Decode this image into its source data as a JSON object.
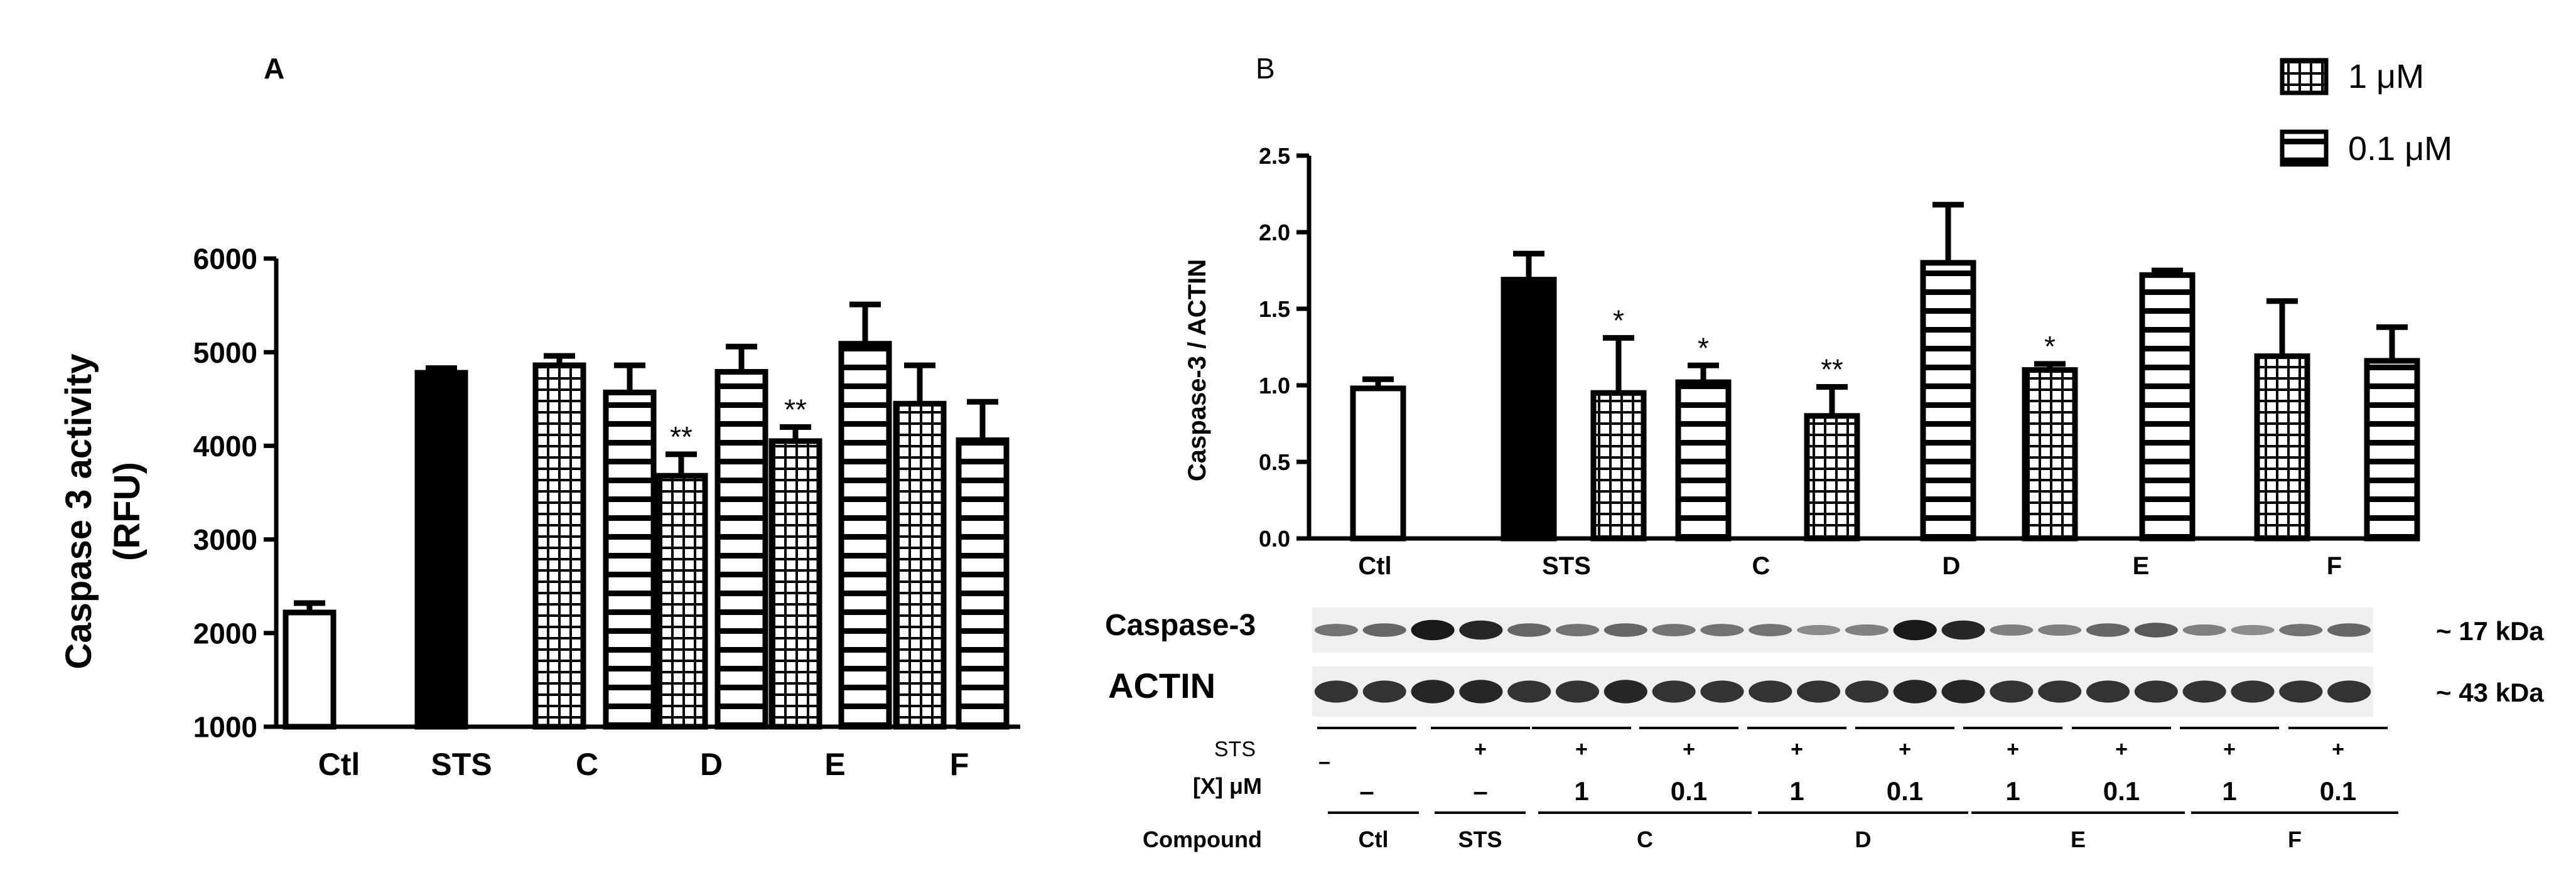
{
  "panel_a_letter": "A",
  "panel_b_letter": "B",
  "legend": {
    "items": [
      {
        "label": "1 μM",
        "pattern": "grid"
      },
      {
        "label": "0.1 μM",
        "pattern": "hstripe"
      }
    ]
  },
  "blot": {
    "caspase_label": "Caspase-3",
    "actin_label": "ACTIN",
    "caspase_kda": "~ 17 kDa",
    "actin_kda": "~ 43 kDa",
    "row_sts_label": "STS",
    "row_conc_label": "[X] μM",
    "row_compound_label": "Compound",
    "sts_row": [
      "–",
      "+",
      "+",
      "+",
      "+",
      "+",
      "+",
      "+",
      "+",
      "+"
    ],
    "conc_row": [
      "–",
      "–",
      "1",
      "0.1",
      "1",
      "0.1",
      "1",
      "0.1",
      "1",
      "0.1"
    ],
    "compounds": [
      "Ctl",
      "STS",
      "C",
      "D",
      "E",
      "F"
    ],
    "caspase_intensity": [
      0.55,
      0.6,
      0.9,
      0.85,
      0.6,
      0.55,
      0.6,
      0.55,
      0.55,
      0.55,
      0.45,
      0.5,
      0.9,
      0.85,
      0.5,
      0.5,
      0.6,
      0.65,
      0.5,
      0.45,
      0.55,
      0.6
    ],
    "actin_intensity": [
      0.8,
      0.8,
      0.85,
      0.85,
      0.8,
      0.8,
      0.85,
      0.8,
      0.8,
      0.8,
      0.8,
      0.8,
      0.85,
      0.85,
      0.8,
      0.8,
      0.8,
      0.8,
      0.8,
      0.8,
      0.8,
      0.8
    ]
  },
  "chart_data": [
    {
      "type": "bar",
      "panel": "A",
      "title": "",
      "xlabel": "",
      "ylabel_line1": "Caspase 3 activity",
      "ylabel_line2": "(RFU)",
      "ylim": [
        1000,
        6000
      ],
      "yticks": [
        1000,
        2000,
        3000,
        4000,
        5000,
        6000
      ],
      "categories": [
        "Ctl",
        "STS",
        "C",
        "D",
        "E",
        "F"
      ],
      "bars": [
        {
          "category": "Ctl",
          "pattern": "white",
          "value": 2220,
          "error": 100,
          "sig": ""
        },
        {
          "category": "STS",
          "pattern": "black",
          "value": 4780,
          "error": 50,
          "sig": ""
        },
        {
          "category": "C",
          "pattern": "grid",
          "value": 4860,
          "error": 100,
          "sig": ""
        },
        {
          "category": "C",
          "pattern": "hstripe",
          "value": 4570,
          "error": 290,
          "sig": ""
        },
        {
          "category": "D",
          "pattern": "grid",
          "value": 3680,
          "error": 230,
          "sig": "**"
        },
        {
          "category": "D",
          "pattern": "hstripe",
          "value": 4790,
          "error": 270,
          "sig": ""
        },
        {
          "category": "E",
          "pattern": "grid",
          "value": 4050,
          "error": 150,
          "sig": "**"
        },
        {
          "category": "E",
          "pattern": "hstripe",
          "value": 5090,
          "error": 420,
          "sig": ""
        },
        {
          "category": "F",
          "pattern": "grid",
          "value": 4450,
          "error": 410,
          "sig": ""
        },
        {
          "category": "F",
          "pattern": "hstripe",
          "value": 4060,
          "error": 410,
          "sig": ""
        }
      ]
    },
    {
      "type": "bar",
      "panel": "B",
      "title": "",
      "xlabel": "",
      "ylabel": "Caspase-3 / ACTIN",
      "ylim": [
        0,
        2.5
      ],
      "yticks": [
        "0.0",
        "0.5",
        "1.0",
        "1.5",
        "2.0",
        "2.5"
      ],
      "categories": [
        "Ctl",
        "STS",
        "C",
        "D",
        "E",
        "F"
      ],
      "bars": [
        {
          "category": "Ctl",
          "pattern": "white",
          "value": 0.98,
          "error": 0.06,
          "sig": ""
        },
        {
          "category": "STS",
          "pattern": "black",
          "value": 1.69,
          "error": 0.17,
          "sig": ""
        },
        {
          "category": "C",
          "pattern": "grid",
          "value": 0.95,
          "error": 0.36,
          "sig": "*"
        },
        {
          "category": "C",
          "pattern": "hstripe",
          "value": 1.02,
          "error": 0.11,
          "sig": "*"
        },
        {
          "category": "D",
          "pattern": "grid",
          "value": 0.8,
          "error": 0.19,
          "sig": "**"
        },
        {
          "category": "D",
          "pattern": "hstripe",
          "value": 1.8,
          "error": 0.38,
          "sig": ""
        },
        {
          "category": "E",
          "pattern": "grid",
          "value": 1.1,
          "error": 0.04,
          "sig": "*"
        },
        {
          "category": "E",
          "pattern": "hstripe",
          "value": 1.72,
          "error": 0.03,
          "sig": ""
        },
        {
          "category": "F",
          "pattern": "grid",
          "value": 1.19,
          "error": 0.36,
          "sig": ""
        },
        {
          "category": "F",
          "pattern": "hstripe",
          "value": 1.16,
          "error": 0.22,
          "sig": ""
        }
      ]
    }
  ]
}
